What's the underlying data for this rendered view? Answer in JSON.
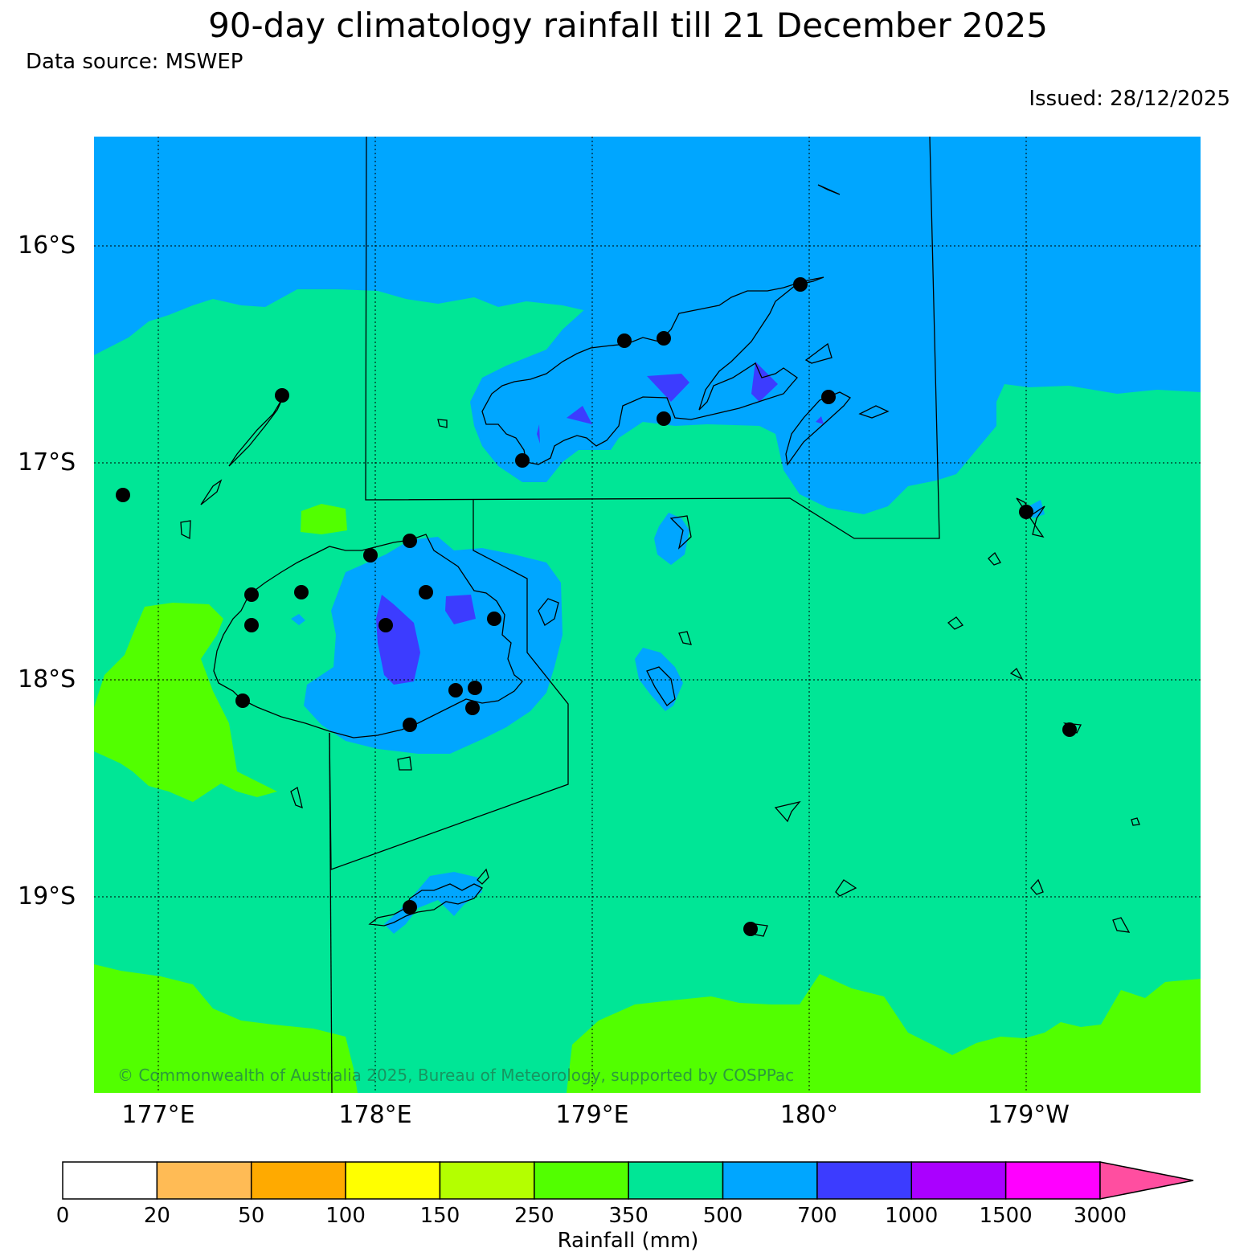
{
  "header": {
    "title": "90-day climatology rainfall till 21 December 2025",
    "data_source": "Data source: MSWEP",
    "issued": "Issued: 28/12/2025"
  },
  "map": {
    "latitude_labels": [
      "16°S",
      "17°S",
      "18°S",
      "19°S"
    ],
    "longitude_labels": [
      "177°E",
      "178°E",
      "179°E",
      "180°",
      "179°W"
    ],
    "copyright": "© Commonwealth of Australia 2025, Bureau of Meteorology, supported by COSPPac",
    "background_class": "350-500 mm",
    "colors": {
      "c_350_500": "#00e696",
      "c_500_700": "#00a6ff",
      "c_700_1000": "#3c3cff",
      "c_250_350": "#52ff00",
      "coast": "#000000"
    }
  },
  "colorbar": {
    "label": "Rainfall (mm)",
    "ticks": [
      "0",
      "20",
      "50",
      "100",
      "150",
      "250",
      "350",
      "500",
      "700",
      "1000",
      "1500",
      "3000"
    ],
    "colors": [
      "#ffffff",
      "#ffbb55",
      "#ffaa00",
      "#ffff00",
      "#b4ff00",
      "#52ff00",
      "#00e696",
      "#00a6ff",
      "#3c3cff",
      "#aa00ff",
      "#ff00ff"
    ],
    "extend_color": "#ff4ea0"
  }
}
